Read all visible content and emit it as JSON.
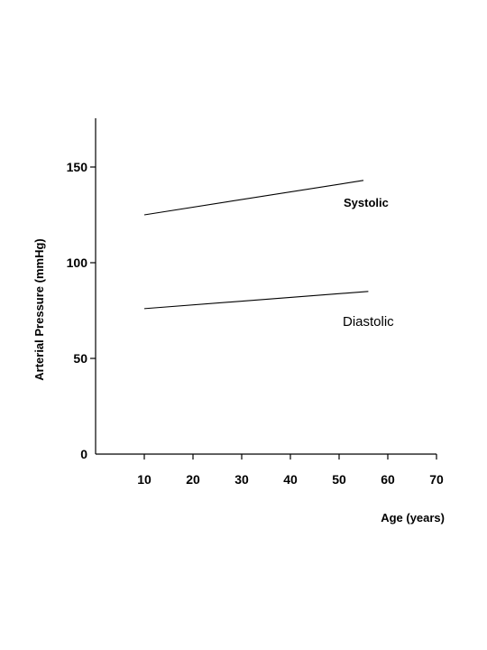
{
  "chart_data": {
    "type": "line",
    "title": "",
    "xlabel": "Age (years)",
    "ylabel": "Arterial Pressure (mmHg)",
    "xlim": [
      0,
      70
    ],
    "ylim": [
      0,
      175
    ],
    "x_ticks": [
      10,
      20,
      30,
      40,
      50,
      60,
      70
    ],
    "y_ticks": [
      0,
      50,
      100,
      150
    ],
    "grid": false,
    "series": [
      {
        "name": "Systolic",
        "x": [
          10,
          55
        ],
        "y": [
          125,
          143
        ]
      },
      {
        "name": "Diastolic",
        "x": [
          10,
          56
        ],
        "y": [
          76,
          85
        ]
      }
    ]
  }
}
